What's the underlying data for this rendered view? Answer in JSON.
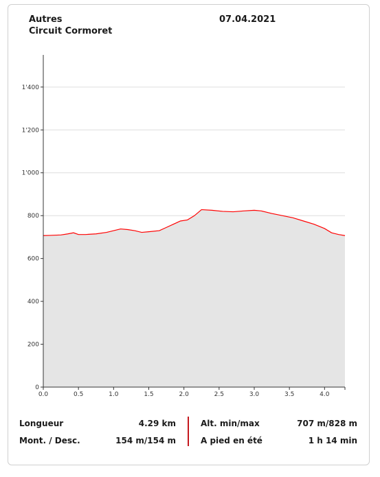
{
  "header": {
    "category": "Autres",
    "route_name": "Circuit Cormoret",
    "date": "07.04.2021"
  },
  "stats": {
    "length_label": "Longueur",
    "length_value": "4.29 km",
    "altminmax_label": "Alt. min/max",
    "altminmax_value": "707 m/828 m",
    "ascdesc_label": "Mont. / Desc.",
    "ascdesc_value": "154 m/154 m",
    "time_label": "A pied en été",
    "time_value": "1 h 14 min"
  },
  "chart_data": {
    "type": "area",
    "xlim": [
      0,
      4.29
    ],
    "ylim": [
      0,
      1550
    ],
    "x_ticks": [
      0,
      0.5,
      1,
      1.5,
      2,
      2.5,
      3,
      3.5,
      4
    ],
    "x_tick_labels": [
      "0.0",
      "0.5",
      "1.0",
      "1.5",
      "2.0",
      "2.5",
      "3.0",
      "3.5",
      "4.0"
    ],
    "y_ticks": [
      0,
      200,
      400,
      600,
      800,
      1000,
      1200,
      1400
    ],
    "y_tick_labels": [
      "0",
      "200",
      "400",
      "600",
      "800",
      "1'000",
      "1'200",
      "1'400"
    ],
    "grid": true,
    "colors": {
      "line": "#ff0000",
      "fill": "#e5e5e5",
      "grid": "#dddddd",
      "axis": "#333333"
    },
    "series": [
      {
        "x": [
          0,
          0.1,
          0.25,
          0.35,
          0.43,
          0.5,
          0.6,
          0.75,
          0.9,
          1.0,
          1.1,
          1.2,
          1.3,
          1.4,
          1.5,
          1.65,
          1.75,
          1.85,
          1.95,
          2.05,
          2.15,
          2.25,
          2.4,
          2.55,
          2.7,
          2.85,
          3.0,
          3.1,
          3.25,
          3.4,
          3.55,
          3.7,
          3.85,
          4.0,
          4.1,
          4.2,
          4.29
        ],
        "y": [
          707,
          708,
          710,
          715,
          720,
          712,
          712,
          715,
          722,
          730,
          738,
          735,
          730,
          722,
          725,
          730,
          745,
          760,
          775,
          780,
          800,
          828,
          825,
          820,
          818,
          822,
          825,
          822,
          810,
          800,
          790,
          775,
          760,
          740,
          720,
          712,
          707
        ]
      }
    ]
  }
}
